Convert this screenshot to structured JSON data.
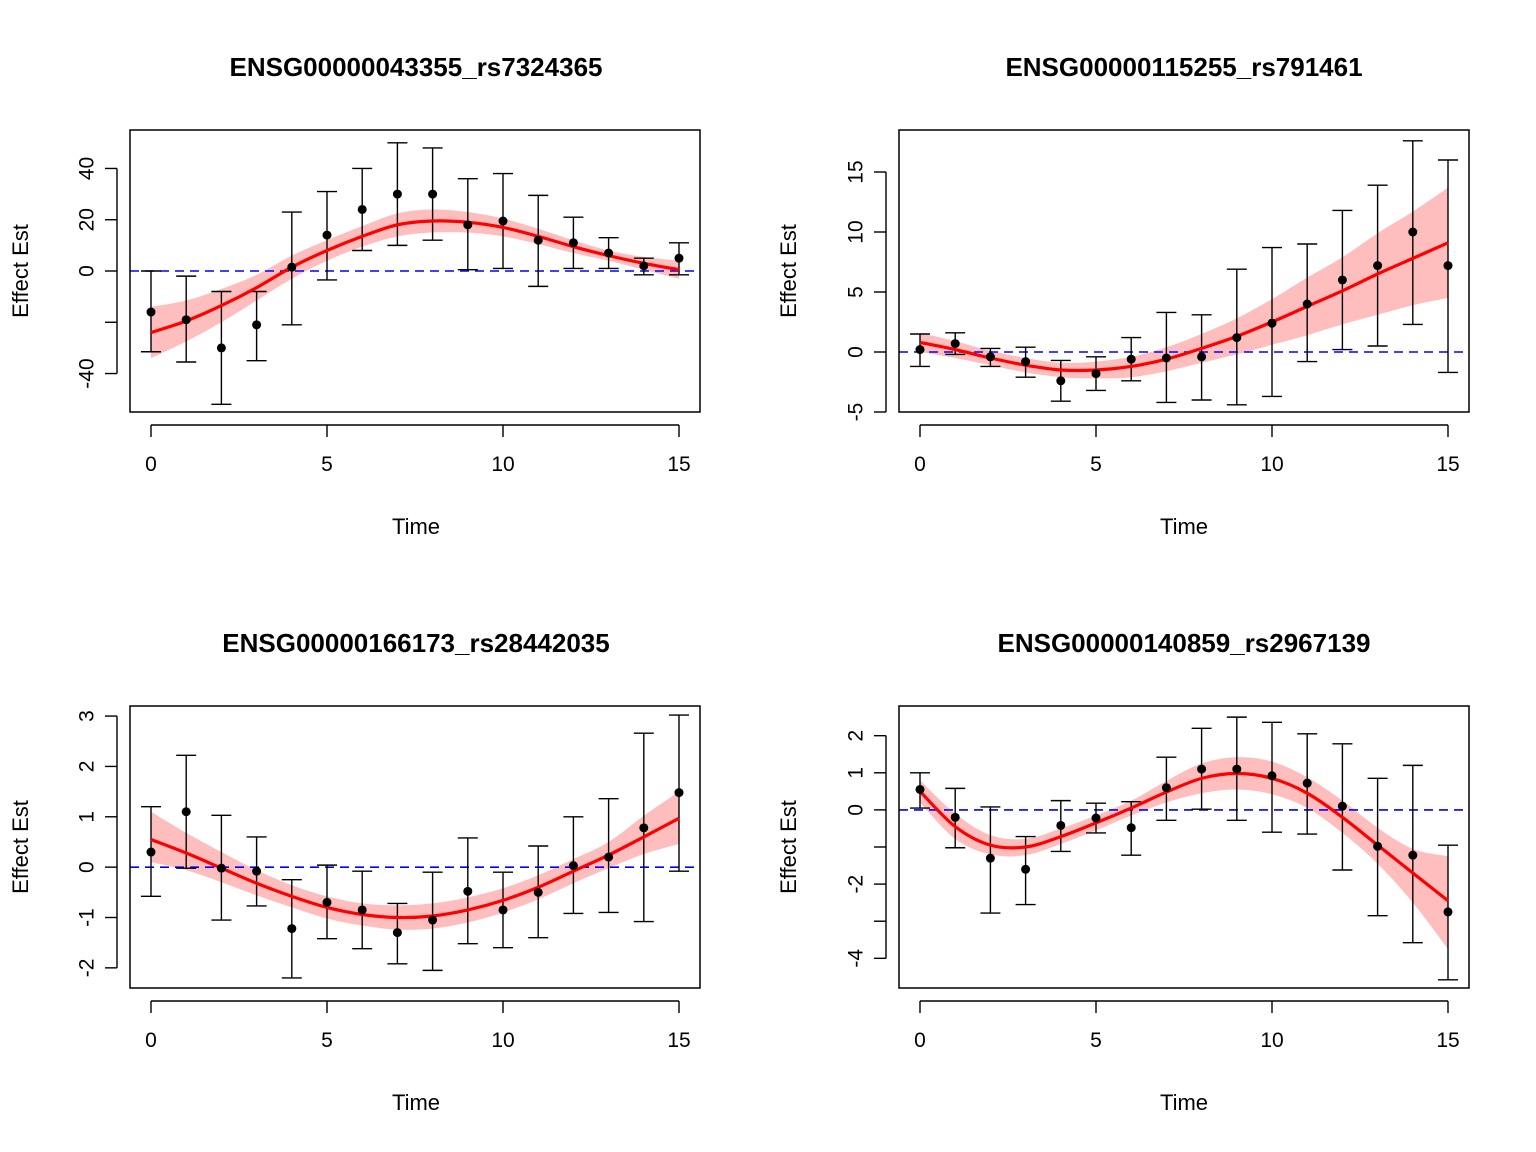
{
  "chart_data": [
    {
      "type": "scatter",
      "title": "ENSG00000043355_rs7324365",
      "xlabel": "Time",
      "ylabel": "Effect Est",
      "xlim": [
        0,
        15
      ],
      "ylim": [
        -55,
        55
      ],
      "x_ticks": [
        0,
        5,
        10,
        15
      ],
      "y_ticks": [
        -40,
        -20,
        0,
        20,
        40
      ],
      "y_tick_labels": [
        "-40",
        "",
        "0",
        "20",
        "40"
      ],
      "reference_line": 0,
      "colors": {
        "points": "#000000",
        "fit_line": "#ff0000",
        "band": "#ffb3b3",
        "reference": "#0000ff"
      },
      "points": {
        "x": [
          0,
          1,
          2,
          3,
          4,
          5,
          6,
          7,
          8,
          9,
          10,
          11,
          12,
          13,
          14,
          15
        ],
        "y": [
          -16,
          -19,
          -30,
          -21,
          1.5,
          14,
          24,
          30,
          30,
          18,
          19.5,
          12,
          11,
          7,
          2,
          5
        ],
        "lower": [
          -31.5,
          -35.5,
          -52,
          -35,
          -21,
          -3.5,
          8,
          10,
          12,
          0.5,
          1,
          -6,
          1,
          1,
          -1.5,
          -1.5
        ],
        "upper": [
          0,
          -2,
          -8,
          -8,
          23,
          31,
          40,
          50,
          48,
          36,
          38,
          29.5,
          21,
          13,
          5,
          11
        ]
      },
      "fit": {
        "x": [
          0,
          1,
          2,
          3,
          4,
          5,
          6,
          7,
          8,
          9,
          10,
          11,
          12,
          13,
          14,
          15
        ],
        "y": [
          -24,
          -19.5,
          -13.5,
          -6.5,
          1.5,
          8,
          13.5,
          18,
          19.5,
          19,
          17,
          13.5,
          9.5,
          6,
          3,
          0.5
        ],
        "lower": [
          -34,
          -27.5,
          -20,
          -11.5,
          -3,
          4,
          9.5,
          13.5,
          15,
          15,
          13.5,
          10.5,
          7,
          4,
          0.5,
          -3
        ],
        "upper": [
          -14,
          -11.5,
          -7,
          -1.5,
          6,
          12,
          17.5,
          22.5,
          24,
          23,
          20.5,
          16.5,
          12,
          8,
          5.5,
          4
        ]
      }
    },
    {
      "type": "scatter",
      "title": "ENSG00000115255_rs791461",
      "xlabel": "Time",
      "ylabel": "Effect Est",
      "xlim": [
        0,
        15
      ],
      "ylim": [
        -5,
        18.5
      ],
      "x_ticks": [
        0,
        5,
        10,
        15
      ],
      "y_ticks": [
        -5,
        0,
        5,
        10,
        15
      ],
      "y_tick_labels": [
        "-5",
        "0",
        "5",
        "10",
        "15"
      ],
      "reference_line": 0,
      "colors": {
        "points": "#000000",
        "fit_line": "#ff0000",
        "band": "#ffb3b3",
        "reference": "#0000ff"
      },
      "points": {
        "x": [
          0,
          1,
          2,
          3,
          4,
          5,
          6,
          7,
          8,
          9,
          10,
          11,
          12,
          13,
          14,
          15
        ],
        "y": [
          0.2,
          0.7,
          -0.4,
          -0.8,
          -2.4,
          -1.8,
          -0.6,
          -0.5,
          -0.4,
          1.2,
          2.4,
          4,
          6,
          7.2,
          10,
          7.2
        ],
        "lower": [
          -1.2,
          -0.2,
          -1.2,
          -2.1,
          -4.1,
          -3.2,
          -2.4,
          -4.2,
          -4.0,
          -4.4,
          -3.7,
          -0.8,
          0.2,
          0.5,
          2.3,
          -1.7
        ],
        "upper": [
          1.5,
          1.6,
          0.3,
          0.4,
          -0.7,
          -0.4,
          1.2,
          3.3,
          3.1,
          6.9,
          8.7,
          9,
          11.8,
          13.9,
          17.6,
          16
        ]
      },
      "fit": {
        "x": [
          0,
          1,
          2,
          3,
          4,
          5,
          6,
          7,
          8,
          9,
          10,
          11,
          12,
          13,
          14,
          15
        ],
        "y": [
          0.8,
          0.2,
          -0.5,
          -1.1,
          -1.5,
          -1.5,
          -1.2,
          -0.6,
          0.3,
          1.3,
          2.5,
          3.8,
          5.1,
          6.5,
          7.8,
          9.1
        ],
        "lower": [
          0,
          -0.5,
          -1.1,
          -1.7,
          -2.1,
          -2.2,
          -2.1,
          -1.6,
          -0.9,
          -0.2,
          0.6,
          1.4,
          2.3,
          3.1,
          3.9,
          4.5
        ],
        "upper": [
          1.6,
          0.9,
          0.1,
          -0.5,
          -0.9,
          -0.8,
          -0.4,
          0.4,
          1.5,
          2.8,
          4.4,
          6.2,
          7.9,
          9.9,
          11.7,
          13.7
        ]
      }
    },
    {
      "type": "scatter",
      "title": "ENSG00000166173_rs28442035",
      "xlabel": "Time",
      "ylabel": "Effect Est",
      "xlim": [
        0,
        15
      ],
      "ylim": [
        -2.4,
        3.2
      ],
      "x_ticks": [
        0,
        5,
        10,
        15
      ],
      "y_ticks": [
        -2,
        -1,
        0,
        1,
        2,
        3
      ],
      "y_tick_labels": [
        "-2",
        "-1",
        "0",
        "1",
        "2",
        "3"
      ],
      "reference_line": 0,
      "colors": {
        "points": "#000000",
        "fit_line": "#ff0000",
        "band": "#ffb3b3",
        "reference": "#0000ff"
      },
      "points": {
        "x": [
          0,
          1,
          2,
          3,
          4,
          5,
          6,
          7,
          8,
          9,
          10,
          11,
          12,
          13,
          14,
          15
        ],
        "y": [
          0.3,
          1.1,
          -0.02,
          -0.08,
          -1.22,
          -0.7,
          -0.85,
          -1.3,
          -1.05,
          -0.48,
          -0.85,
          -0.5,
          0.03,
          0.2,
          0.78,
          1.48
        ],
        "lower": [
          -0.58,
          -0.02,
          -1.05,
          -0.77,
          -2.2,
          -1.42,
          -1.62,
          -1.92,
          -2.05,
          -1.52,
          -1.6,
          -1.4,
          -0.92,
          -0.9,
          -1.08,
          -0.08
        ],
        "upper": [
          1.2,
          2.22,
          1.03,
          0.6,
          -0.25,
          0.04,
          -0.08,
          -0.72,
          -0.1,
          0.58,
          -0.1,
          0.42,
          1.0,
          1.36,
          2.66,
          3.02
        ]
      },
      "fit": {
        "x": [
          0,
          1,
          2,
          3,
          4,
          5,
          6,
          7,
          8,
          9,
          10,
          11,
          12,
          13,
          14,
          15
        ],
        "y": [
          0.55,
          0.28,
          -0.02,
          -0.32,
          -0.58,
          -0.8,
          -0.94,
          -1.0,
          -0.97,
          -0.85,
          -0.66,
          -0.4,
          -0.08,
          0.24,
          0.6,
          0.97
        ],
        "lower": [
          0.1,
          -0.06,
          -0.3,
          -0.56,
          -0.8,
          -1.02,
          -1.16,
          -1.24,
          -1.22,
          -1.1,
          -0.9,
          -0.64,
          -0.32,
          -0.02,
          0.26,
          0.46
        ],
        "upper": [
          1.1,
          0.68,
          0.3,
          -0.06,
          -0.36,
          -0.58,
          -0.72,
          -0.76,
          -0.72,
          -0.6,
          -0.42,
          -0.16,
          0.16,
          0.5,
          1.02,
          1.5
        ]
      }
    },
    {
      "type": "scatter",
      "title": "ENSG00000140859_rs2967139",
      "xlabel": "Time",
      "ylabel": "Effect Est",
      "xlim": [
        0,
        15
      ],
      "ylim": [
        -4.8,
        2.8
      ],
      "x_ticks": [
        0,
        5,
        10,
        15
      ],
      "y_ticks": [
        -4,
        -3,
        -2,
        -1,
        0,
        1,
        2
      ],
      "y_tick_labels": [
        "-4",
        "",
        "-2",
        "",
        "0",
        "1",
        "2"
      ],
      "reference_line": 0,
      "colors": {
        "points": "#000000",
        "fit_line": "#ff0000",
        "band": "#ffb3b3",
        "reference": "#0000ff"
      },
      "points": {
        "x": [
          0,
          1,
          2,
          3,
          4,
          5,
          6,
          7,
          8,
          9,
          10,
          11,
          12,
          13,
          14,
          15
        ],
        "y": [
          0.55,
          -0.2,
          -1.3,
          -1.6,
          -0.42,
          -0.22,
          -0.48,
          0.6,
          1.1,
          1.1,
          0.92,
          0.72,
          0.1,
          -0.98,
          -1.22,
          -2.75
        ],
        "lower": [
          0.05,
          -1.02,
          -2.78,
          -2.55,
          -1.12,
          -0.62,
          -1.22,
          -0.28,
          0.02,
          -0.28,
          -0.6,
          -0.65,
          -1.62,
          -2.85,
          -3.58,
          -4.58
        ],
        "upper": [
          1.0,
          0.58,
          0.08,
          -0.72,
          0.25,
          0.18,
          0.22,
          1.42,
          2.2,
          2.5,
          2.36,
          2.05,
          1.78,
          0.85,
          1.2,
          -0.95
        ]
      },
      "fit": {
        "x": [
          0,
          1,
          2,
          3,
          4,
          5,
          6,
          7,
          8,
          9,
          10,
          11,
          12,
          13,
          14,
          15
        ],
        "y": [
          0.5,
          -0.45,
          -0.95,
          -1.0,
          -0.72,
          -0.35,
          0.05,
          0.48,
          0.85,
          0.98,
          0.85,
          0.45,
          -0.2,
          -0.95,
          -1.7,
          -2.45
        ],
        "lower": [
          0.2,
          -0.78,
          -1.2,
          -1.22,
          -0.92,
          -0.55,
          -0.15,
          0.2,
          0.45,
          0.55,
          0.42,
          0.05,
          -0.62,
          -1.45,
          -2.5,
          -3.75
        ],
        "upper": [
          0.8,
          -0.1,
          -0.68,
          -0.78,
          -0.5,
          -0.15,
          0.25,
          0.78,
          1.25,
          1.42,
          1.3,
          0.88,
          0.25,
          -0.48,
          -1.05,
          -1.25
        ]
      }
    }
  ]
}
